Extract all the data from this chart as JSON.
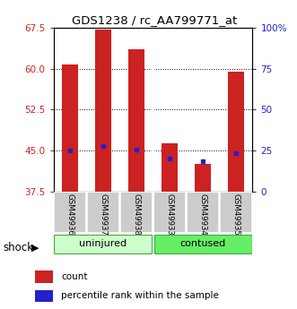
{
  "title": "GDS1238 / rc_AA799771_at",
  "samples": [
    "GSM49936",
    "GSM49937",
    "GSM49938",
    "GSM49933",
    "GSM49934",
    "GSM49935"
  ],
  "group_labels": [
    "uninjured",
    "contused"
  ],
  "shock_label": "shock",
  "count_values": [
    60.7,
    67.2,
    63.5,
    46.3,
    42.5,
    59.5
  ],
  "percentile_values": [
    45.0,
    45.8,
    45.2,
    43.5,
    43.0,
    44.5
  ],
  "bar_bottom": 37.5,
  "ylim_left": [
    37.5,
    67.5
  ],
  "yticks_left": [
    37.5,
    45.0,
    52.5,
    60.0,
    67.5
  ],
  "ylim_right": [
    0,
    100
  ],
  "yticks_right": [
    0,
    25,
    50,
    75,
    100
  ],
  "ytick_labels_right": [
    "0",
    "25",
    "50",
    "75",
    "100%"
  ],
  "count_color": "#cc2222",
  "percentile_color": "#2222cc",
  "bar_width": 0.5,
  "bg_color": "#ffffff",
  "legend_count": "count",
  "legend_pct": "percentile rank within the sample",
  "uninjured_color": "#ccffcc",
  "contused_color": "#66ee66",
  "group_border_color": "#44aa44",
  "sample_box_color": "#cccccc"
}
